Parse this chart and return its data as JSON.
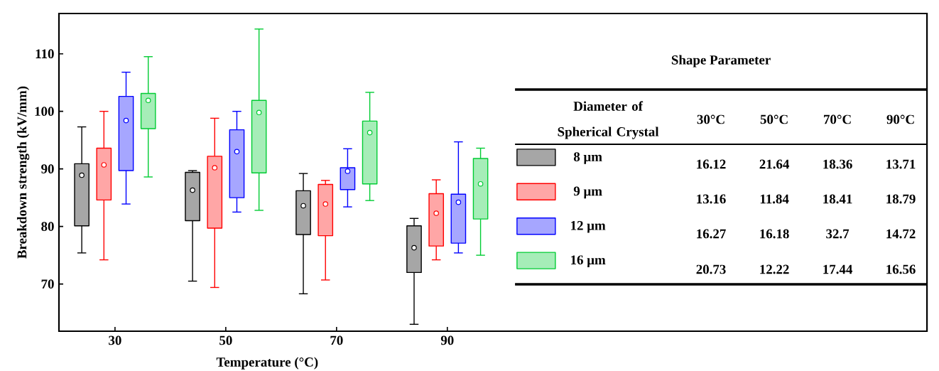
{
  "chart_data": {
    "type": "box",
    "xlabel": "Temperature (°C)",
    "ylabel": "Breakdown strength (kV/mm)",
    "categories": [
      "30",
      "50",
      "70",
      "90"
    ],
    "ylim": [
      61.8,
      117
    ],
    "yticks": [
      70,
      80,
      90,
      100,
      110
    ],
    "legend": "right",
    "legend_title": "Diameter of Spherical Crystal",
    "annotations": [
      "Shape Parameter",
      "30°C",
      "50°C",
      "70°C",
      "90°C",
      "16.12",
      "21.64",
      "18.36",
      "13.71",
      "13.16",
      "11.84",
      "18.41",
      "18.79",
      "16.27",
      "16.18",
      "32.7",
      "14.72",
      "20.73",
      "12.22",
      "17.44",
      "16.56"
    ],
    "series": [
      {
        "name": "8 μm",
        "color": "#000000",
        "boxes": [
          {
            "low": 75.4,
            "q1": 80.1,
            "median": 88.9,
            "q3": 90.9,
            "high": 97.3
          },
          {
            "low": 70.5,
            "q1": 81.0,
            "median": 86.3,
            "q3": 89.4,
            "high": 89.7
          },
          {
            "low": 68.3,
            "q1": 78.6,
            "median": 83.6,
            "q3": 86.2,
            "high": 89.2
          },
          {
            "low": 63.0,
            "q1": 72.0,
            "median": 76.3,
            "q3": 80.1,
            "high": 81.4
          }
        ]
      },
      {
        "name": "9 μm",
        "color": "#ff0000",
        "boxes": [
          {
            "low": 74.2,
            "q1": 84.6,
            "median": 90.7,
            "q3": 93.6,
            "high": 100.0
          },
          {
            "low": 69.4,
            "q1": 79.7,
            "median": 90.2,
            "q3": 92.2,
            "high": 98.8
          },
          {
            "low": 70.7,
            "q1": 78.4,
            "median": 83.9,
            "q3": 87.3,
            "high": 88.0
          },
          {
            "low": 74.2,
            "q1": 76.6,
            "median": 82.3,
            "q3": 85.7,
            "high": 88.1
          }
        ]
      },
      {
        "name": "12 μm",
        "color": "#0000ff",
        "boxes": [
          {
            "low": 83.9,
            "q1": 89.7,
            "median": 98.4,
            "q3": 102.6,
            "high": 106.8
          },
          {
            "low": 82.5,
            "q1": 85.0,
            "median": 93.0,
            "q3": 96.8,
            "high": 100.0
          },
          {
            "low": 83.4,
            "q1": 86.4,
            "median": 89.6,
            "q3": 90.2,
            "high": 93.5
          },
          {
            "low": 75.4,
            "q1": 77.1,
            "median": 84.2,
            "q3": 85.6,
            "high": 94.7
          }
        ]
      },
      {
        "name": "16 μm",
        "color": "#00cc33",
        "boxes": [
          {
            "low": 88.6,
            "q1": 97.0,
            "median": 101.9,
            "q3": 103.1,
            "high": 109.5
          },
          {
            "low": 82.8,
            "q1": 89.3,
            "median": 99.8,
            "q3": 101.9,
            "high": 114.3
          },
          {
            "low": 84.5,
            "q1": 87.4,
            "median": 96.3,
            "q3": 98.3,
            "high": 103.3
          },
          {
            "low": 75.0,
            "q1": 81.3,
            "median": 87.4,
            "q3": 91.8,
            "high": 93.6
          }
        ]
      }
    ]
  }
}
